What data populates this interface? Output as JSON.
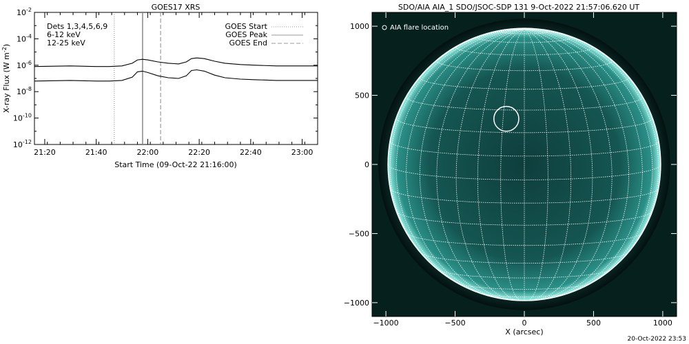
{
  "chart_data": [
    {
      "type": "line",
      "title": "GOES17 XRS",
      "xlabel": "Start Time (09-Oct-22 21:16:00)",
      "ylabel_main": "X-ray Flux (W m",
      "ylabel_exp": "-2",
      "ylabel_close": ")",
      "y_log_scale": true,
      "ylim_exp": [
        -12,
        -2
      ],
      "ytick_exps": [
        -12,
        -10,
        -8,
        -6,
        -4,
        -2
      ],
      "xlim_min": [
        1276,
        1386
      ],
      "xticks": [
        {
          "label": "21:20",
          "min": 1280
        },
        {
          "label": "21:40",
          "min": 1300
        },
        {
          "label": "22:00",
          "min": 1320
        },
        {
          "label": "22:20",
          "min": 1340
        },
        {
          "label": "22:40",
          "min": 1360
        },
        {
          "label": "23:00",
          "min": 1380
        }
      ],
      "detectors_label": "Dets 1,3,4,5,6,9",
      "band_labels": [
        {
          "text": "6-12 keV",
          "color": "#d020d0"
        },
        {
          "text": "12-25 keV",
          "color": "#20d020"
        }
      ],
      "legend": [
        "GOES Start",
        "GOES Peak",
        "GOES End"
      ],
      "legend_location": "top-right",
      "markers_min": {
        "start": 1307,
        "peak": 1318,
        "end": 1325
      },
      "series": [
        {
          "color": "#000000",
          "x": [
            1276,
            1290,
            1300,
            1305,
            1310,
            1314,
            1316,
            1318,
            1320,
            1324,
            1328,
            1332,
            1335,
            1337,
            1339,
            1342,
            1346,
            1350,
            1356,
            1362,
            1370,
            1378,
            1386
          ],
          "log10_values": [
            -6.1,
            -6.05,
            -6.1,
            -6.1,
            -6.05,
            -5.85,
            -5.6,
            -5.55,
            -5.6,
            -5.75,
            -5.85,
            -5.9,
            -5.75,
            -5.5,
            -5.45,
            -5.5,
            -5.7,
            -5.85,
            -5.95,
            -6.0,
            -6.05,
            -6.05,
            -6.05
          ]
        },
        {
          "color": "#000000",
          "x": [
            1276,
            1290,
            1300,
            1305,
            1310,
            1314,
            1316,
            1318,
            1320,
            1324,
            1328,
            1332,
            1335,
            1337,
            1339,
            1342,
            1346,
            1350,
            1356,
            1362,
            1370,
            1378,
            1386
          ],
          "log10_values": [
            -7.2,
            -7.15,
            -7.2,
            -7.2,
            -7.15,
            -6.9,
            -6.5,
            -6.45,
            -6.55,
            -6.8,
            -6.95,
            -7.0,
            -6.8,
            -6.4,
            -6.35,
            -6.45,
            -6.75,
            -6.95,
            -7.05,
            -7.1,
            -7.15,
            -7.15,
            -7.15
          ]
        }
      ]
    },
    {
      "type": "scatter",
      "title": "SDO/AIA AIA_1 SDO/JSOC-SDP 131  9-Oct-2022 21:57:06.620 UT",
      "xlabel": "X (arcsec)",
      "ylabel": "",
      "xlim": [
        -1100,
        1100
      ],
      "ylim": [
        -1100,
        1100
      ],
      "xticks": [
        -1000,
        -500,
        0,
        500,
        1000
      ],
      "yticks": [
        -1000,
        -500,
        0,
        500,
        1000
      ],
      "xtick_labels": [
        "−1000",
        "−500",
        "0",
        "500",
        "1000"
      ],
      "ytick_labels": [
        "−1000",
        "−500",
        "0",
        "500",
        "1000"
      ],
      "solar_radius_arcsec": 985,
      "flare_location": {
        "x": -130,
        "y": 330,
        "radius_arcsec": 90
      },
      "legend": [
        "AIA flare location"
      ],
      "legend_location": "top-left",
      "disk_color": "#1a6f6b",
      "grid_color": "#ffffff"
    }
  ],
  "footer": {
    "timestamp": "20-Oct-2022 23:53"
  }
}
